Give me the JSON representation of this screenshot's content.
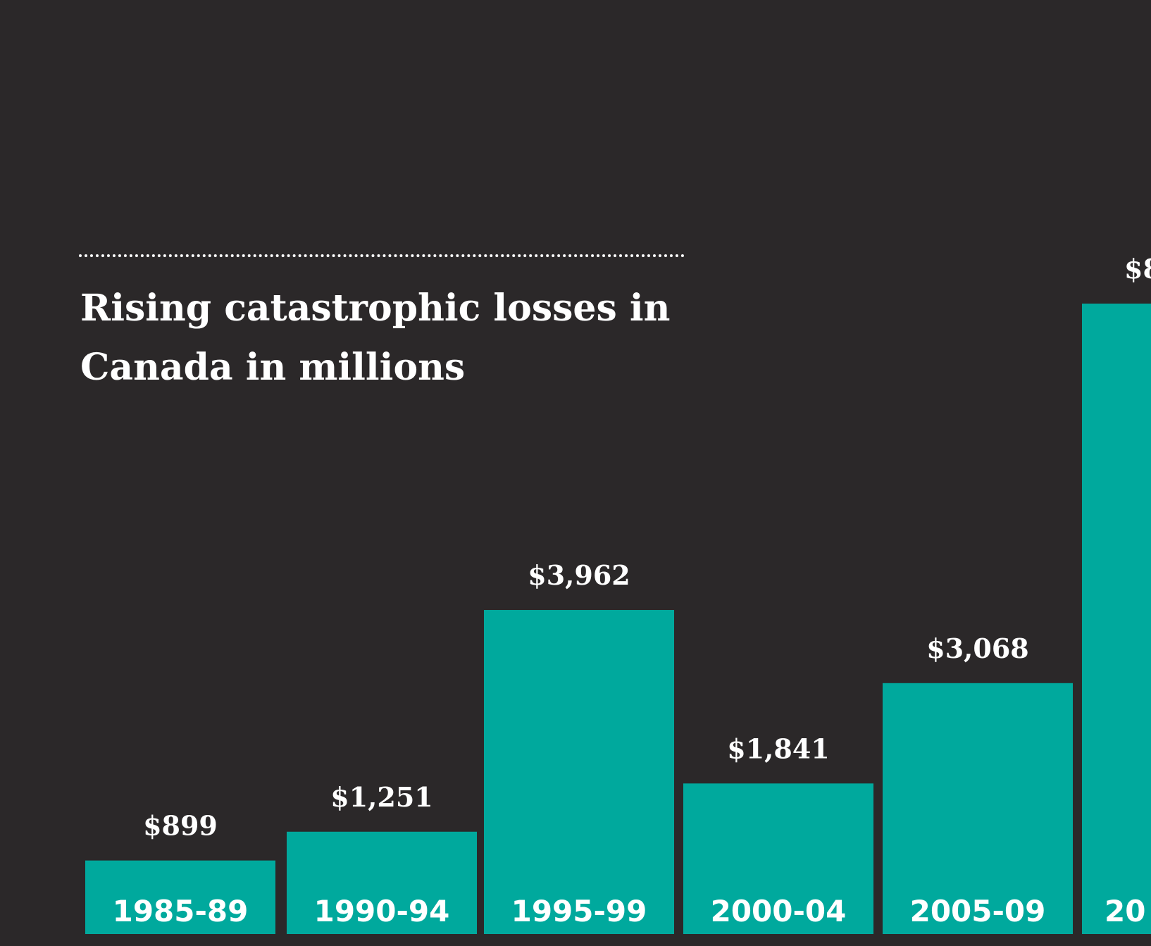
{
  "chart_data": {
    "type": "bar",
    "title": "Rising catastrophic losses in Canada in millions",
    "xlabel": "",
    "ylabel": "",
    "categories": [
      "1985-89",
      "1990-94",
      "1995-99",
      "2000-04",
      "2005-09",
      "20"
    ],
    "values": [
      899,
      1251,
      3962,
      1841,
      3068,
      null
    ],
    "value_labels": [
      "$899",
      "$1,251",
      "$3,962",
      "$1,841",
      "$3,068",
      "$8"
    ],
    "bar_color": "#00a99d",
    "background_color": "#2b2829",
    "text_color": "#ffffff",
    "grid": false,
    "legend": "none"
  }
}
